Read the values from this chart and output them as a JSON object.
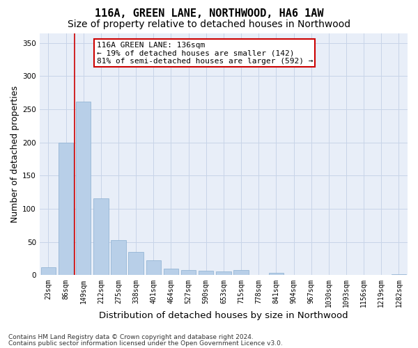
{
  "title": "116A, GREEN LANE, NORTHWOOD, HA6 1AW",
  "subtitle": "Size of property relative to detached houses in Northwood",
  "xlabel": "Distribution of detached houses by size in Northwood",
  "ylabel": "Number of detached properties",
  "categories": [
    "23sqm",
    "86sqm",
    "149sqm",
    "212sqm",
    "275sqm",
    "338sqm",
    "401sqm",
    "464sqm",
    "527sqm",
    "590sqm",
    "653sqm",
    "715sqm",
    "778sqm",
    "841sqm",
    "904sqm",
    "967sqm",
    "1030sqm",
    "1093sqm",
    "1156sqm",
    "1219sqm",
    "1282sqm"
  ],
  "values": [
    12,
    200,
    262,
    116,
    53,
    35,
    23,
    10,
    8,
    7,
    6,
    8,
    0,
    4,
    0,
    0,
    0,
    0,
    0,
    0,
    2
  ],
  "bar_color": "#b8cfe8",
  "bar_edge_color": "#8aaed0",
  "vline_x": 1.5,
  "vline_color": "#cc0000",
  "ylim": [
    0,
    365
  ],
  "yticks": [
    0,
    50,
    100,
    150,
    200,
    250,
    300,
    350
  ],
  "annotation_text": "116A GREEN LANE: 136sqm\n← 19% of detached houses are smaller (142)\n81% of semi-detached houses are larger (592) →",
  "annotation_box_color": "#ffffff",
  "annotation_box_edge": "#cc0000",
  "footer_line1": "Contains HM Land Registry data © Crown copyright and database right 2024.",
  "footer_line2": "Contains public sector information licensed under the Open Government Licence v3.0.",
  "background_color": "#ffffff",
  "plot_bg_color": "#e8eef8",
  "grid_color": "#c8d4e8",
  "title_fontsize": 11,
  "subtitle_fontsize": 10,
  "axis_label_fontsize": 9,
  "tick_fontsize": 7,
  "annot_fontsize": 8,
  "footer_fontsize": 6.5
}
